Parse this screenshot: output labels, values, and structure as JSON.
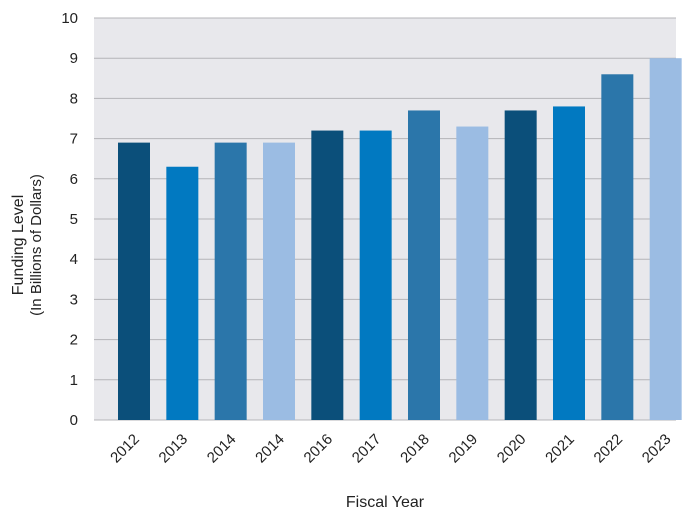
{
  "chart_data": {
    "type": "bar",
    "title": "",
    "xlabel": "Fiscal Year",
    "ylabel": "Funding Level",
    "ylabel_sub": "(In Billions of Dollars)",
    "ylim": [
      0,
      10
    ],
    "yticks": [
      0,
      1,
      2,
      3,
      4,
      5,
      6,
      7,
      8,
      9,
      10
    ],
    "grid": true,
    "legend": "none",
    "categories": [
      "2012",
      "2013",
      "2014",
      "2014",
      "2016",
      "2017",
      "2018",
      "2019",
      "2020",
      "2021",
      "2022",
      "2023"
    ],
    "values": [
      6.9,
      6.3,
      6.9,
      6.9,
      7.2,
      7.2,
      7.7,
      7.3,
      7.7,
      7.8,
      8.6,
      9.0
    ],
    "bar_colors": [
      "#0b4f7a",
      "#0179c1",
      "#2b76aa",
      "#9bbce3",
      "#0b4f7a",
      "#0179c1",
      "#2b76aa",
      "#9bbce3",
      "#0b4f7a",
      "#0179c1",
      "#2b76aa",
      "#9bbce3"
    ],
    "plot_background": "#e8e8ec",
    "gridline_color": "#b4b4b8"
  }
}
